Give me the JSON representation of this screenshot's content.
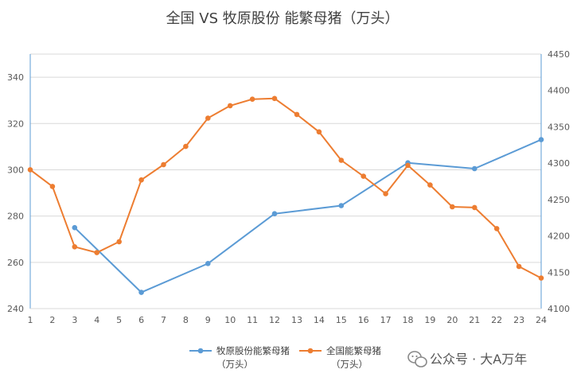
{
  "watermark": {
    "text": "公众号 · 大A万年",
    "icon": "wechat-icon"
  },
  "chart_data": {
    "type": "line",
    "title": "全国 VS 牧原股份 能繁母猪（万头）",
    "x": [
      1,
      2,
      3,
      4,
      5,
      6,
      7,
      8,
      9,
      10,
      11,
      12,
      13,
      14,
      15,
      16,
      17,
      18,
      19,
      20,
      21,
      22,
      23,
      24
    ],
    "y_left": {
      "ylim": [
        240,
        350
      ],
      "ticks": [
        240,
        260,
        280,
        300,
        320,
        340
      ]
    },
    "y_right": {
      "ylim": [
        4100,
        4450
      ],
      "ticks": [
        4100,
        4150,
        4200,
        4250,
        4300,
        4350,
        4400,
        4450
      ]
    },
    "grid": true,
    "legend": "bottom",
    "series": [
      {
        "name_lines": [
          "牧原股份能繁母猪",
          "（万头）"
        ],
        "axis": "left",
        "color": "#5b9bd5",
        "points": [
          [
            3,
            275
          ],
          [
            6,
            247
          ],
          [
            9,
            259.5
          ],
          [
            12,
            281
          ],
          [
            15,
            284.5
          ],
          [
            18,
            303
          ],
          [
            21,
            300.5
          ],
          [
            24,
            313
          ]
        ]
      },
      {
        "name_lines": [
          "全国能繁母猪",
          "（万头）"
        ],
        "axis": "right",
        "color": "#ed7d31",
        "points": [
          [
            1,
            4291
          ],
          [
            2,
            4268
          ],
          [
            3,
            4185
          ],
          [
            4,
            4177
          ],
          [
            5,
            4192
          ],
          [
            6,
            4277
          ],
          [
            7,
            4298
          ],
          [
            8,
            4323
          ],
          [
            9,
            4362
          ],
          [
            10,
            4379
          ],
          [
            11,
            4388
          ],
          [
            12,
            4389
          ],
          [
            13,
            4367
          ],
          [
            14,
            4343
          ],
          [
            15,
            4304
          ],
          [
            16,
            4282
          ],
          [
            17,
            4258
          ],
          [
            18,
            4297
          ],
          [
            19,
            4270
          ],
          [
            20,
            4240
          ],
          [
            21,
            4239
          ],
          [
            22,
            4210
          ],
          [
            23,
            4158
          ],
          [
            24,
            4142
          ]
        ]
      }
    ]
  }
}
